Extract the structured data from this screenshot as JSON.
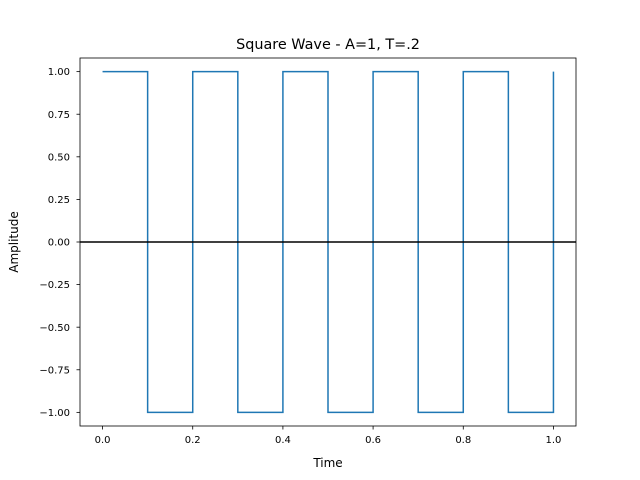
{
  "chart_data": {
    "type": "line",
    "title": "Square Wave - A=1, T=.2",
    "xlabel": "Time",
    "ylabel": "Amplitude",
    "xlim": [
      -0.05,
      1.05
    ],
    "ylim": [
      -1.08,
      1.08
    ],
    "x_ticks": [
      0.0,
      0.2,
      0.4,
      0.6,
      0.8,
      1.0
    ],
    "x_tick_labels": [
      "0.0",
      "0.2",
      "0.4",
      "0.6",
      "0.8",
      "1.0"
    ],
    "y_ticks": [
      -1.0,
      -0.75,
      -0.5,
      -0.25,
      0.0,
      0.25,
      0.5,
      0.75,
      1.0
    ],
    "y_tick_labels": [
      "−1.00",
      "−0.75",
      "−0.50",
      "−0.25",
      "0.00",
      "0.25",
      "0.50",
      "0.75",
      "1.00"
    ],
    "grid": false,
    "reference_line": {
      "y": 0,
      "color": "#000000"
    },
    "series": [
      {
        "color": "#1f77b4",
        "x": [
          0.0,
          0.1,
          0.1,
          0.2,
          0.2,
          0.3,
          0.3,
          0.4,
          0.4,
          0.5,
          0.5,
          0.6,
          0.6,
          0.7,
          0.7,
          0.8,
          0.8,
          0.9,
          0.9,
          1.0,
          1.0
        ],
        "y": [
          1,
          1,
          -1,
          -1,
          1,
          1,
          -1,
          -1,
          1,
          1,
          -1,
          -1,
          1,
          1,
          -1,
          -1,
          1,
          1,
          -1,
          -1,
          1
        ]
      }
    ]
  }
}
